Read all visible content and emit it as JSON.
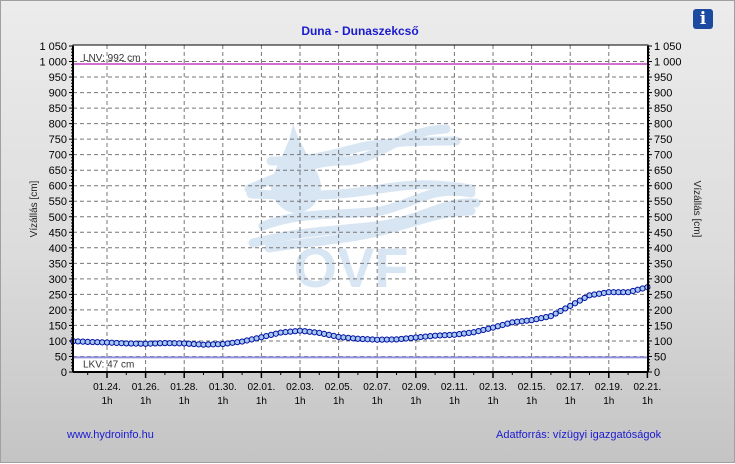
{
  "chart_data": {
    "type": "line",
    "title": "Duna - Dunaszekcső",
    "ylabel": "Vízállás [cm]",
    "ylim": [
      0,
      1050
    ],
    "y_ticks": [
      "0",
      "50",
      "100",
      "150",
      "200",
      "250",
      "300",
      "350",
      "400",
      "450",
      "500",
      "550",
      "600",
      "650",
      "700",
      "750",
      "800",
      "850",
      "900",
      "950",
      "1 000",
      "1 050"
    ],
    "x_ticks": [
      {
        "date": "01.24.",
        "time": "1h"
      },
      {
        "date": "01.26.",
        "time": "1h"
      },
      {
        "date": "01.28.",
        "time": "1h"
      },
      {
        "date": "01.30.",
        "time": "1h"
      },
      {
        "date": "02.01.",
        "time": "1h"
      },
      {
        "date": "02.03.",
        "time": "1h"
      },
      {
        "date": "02.05.",
        "time": "1h"
      },
      {
        "date": "02.07.",
        "time": "1h"
      },
      {
        "date": "02.09.",
        "time": "1h"
      },
      {
        "date": "02.11.",
        "time": "1h"
      },
      {
        "date": "02.13.",
        "time": "1h"
      },
      {
        "date": "02.15.",
        "time": "1h"
      },
      {
        "date": "02.17.",
        "time": "1h"
      },
      {
        "date": "02.19.",
        "time": "1h"
      },
      {
        "date": "02.21.",
        "time": "1h"
      }
    ],
    "grid": true,
    "x": [
      "01.22.",
      "01.23.",
      "01.24.",
      "01.25.",
      "01.26.",
      "01.27.",
      "01.28.",
      "01.29.",
      "01.30.",
      "01.31.",
      "02.01.",
      "02.02.",
      "02.03.",
      "02.04.",
      "02.05.",
      "02.06.",
      "02.07.",
      "02.08.",
      "02.09.",
      "02.10.",
      "02.11.",
      "02.12.",
      "02.13.",
      "02.14.",
      "02.15.",
      "02.16.",
      "02.17.",
      "02.18.",
      "02.19.",
      "02.20.",
      "02.21."
    ],
    "series": [
      {
        "values": [
          100,
          97,
          95,
          92,
          91,
          93,
          92,
          88,
          90,
          98,
          112,
          127,
          133,
          126,
          113,
          107,
          104,
          105,
          111,
          117,
          120,
          128,
          143,
          160,
          167,
          180,
          213,
          247,
          257,
          257,
          273
        ]
      }
    ],
    "reference_lines": [
      {
        "label": "LNV: 992 cm",
        "value": 992,
        "color": "#d070d0"
      },
      {
        "label": "LKV: 47 cm",
        "value": 47,
        "color": "#9090e0"
      }
    ],
    "line_color": "#0010a0",
    "marker_fill": "#a8c8f0"
  },
  "watermark": "OVF",
  "footer": {
    "left": "www.hydroinfo.hu",
    "right": "Adatforrás: vízügyi igazgatóságok"
  },
  "info_icon": "i"
}
